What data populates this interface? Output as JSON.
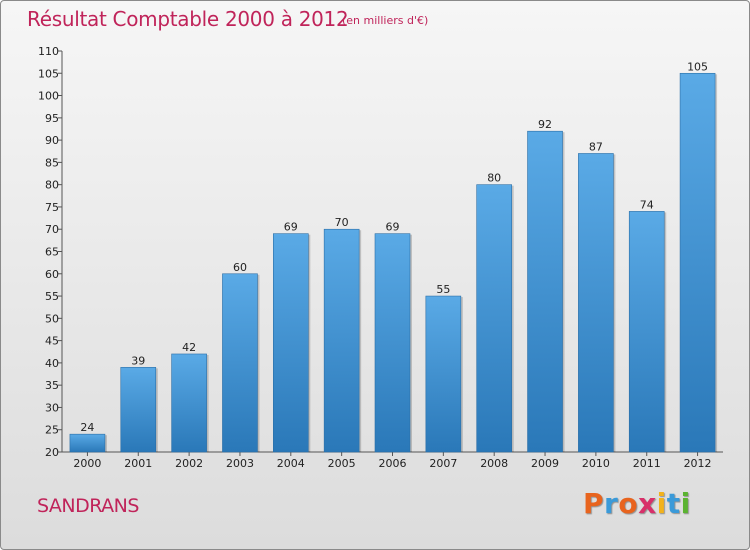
{
  "chart_data": {
    "type": "bar",
    "title": "Résultat Comptable 2000 à 2012",
    "subtitle": "(en milliers d'€)",
    "categories": [
      "2000",
      "2001",
      "2002",
      "2003",
      "2004",
      "2005",
      "2006",
      "2007",
      "2008",
      "2009",
      "2010",
      "2011",
      "2012"
    ],
    "values": [
      24,
      39,
      42,
      60,
      69,
      70,
      69,
      55,
      80,
      92,
      87,
      74,
      105
    ],
    "ylim": [
      20,
      110
    ],
    "yticks": [
      20,
      25,
      30,
      35,
      40,
      45,
      50,
      55,
      60,
      65,
      70,
      75,
      80,
      85,
      90,
      95,
      100,
      105,
      110
    ],
    "xlabel": "",
    "ylabel": "",
    "grid": false,
    "colors": {
      "bar_light": "#5aaae6",
      "bar_dark": "#2a78b8",
      "title": "#c0245a"
    }
  },
  "footer": {
    "commune": "SANDRANS",
    "logo_letters": [
      "P",
      "r",
      "o",
      "x",
      "i",
      "t",
      "i"
    ],
    "logo_colors": [
      "#e8641e",
      "#3a9ad9",
      "#e8641e",
      "#d8306a",
      "#f2b21c",
      "#3a9ad9",
      "#5bb331"
    ]
  }
}
